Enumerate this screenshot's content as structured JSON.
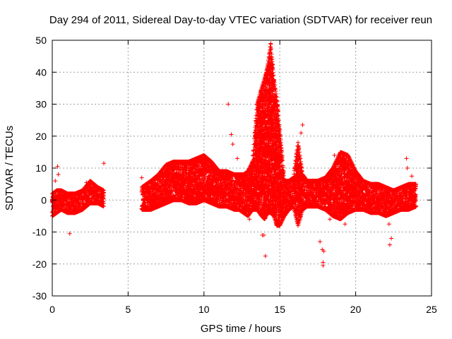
{
  "chart_data": {
    "type": "scatter",
    "title": "Day 294 of 2011, Sidereal Day-to-day VTEC variation (SDTVAR) for receiver reun",
    "xlabel": "GPS time / hours",
    "ylabel": "SDTVAR / TECUs",
    "xlim": [
      0,
      25
    ],
    "ylim": [
      -30,
      50
    ],
    "xticks": [
      0,
      5,
      10,
      15,
      20,
      25
    ],
    "yticks": [
      -30,
      -20,
      -10,
      0,
      10,
      20,
      30,
      40,
      50
    ],
    "grid": true,
    "marker": "+",
    "color": "#ff0000",
    "series": [
      {
        "name": "SDTVAR",
        "envelope_hours": [
          0.0,
          0.3,
          0.6,
          1.0,
          1.5,
          2.0,
          2.5,
          3.0,
          3.4,
          5.9,
          6.5,
          7.0,
          7.5,
          8.0,
          8.5,
          9.0,
          9.5,
          10.0,
          10.5,
          11.0,
          11.5,
          12.0,
          12.3,
          12.6,
          12.9,
          13.2,
          13.5,
          13.8,
          14.0,
          14.2,
          14.4,
          14.6,
          14.8,
          15.0,
          15.3,
          15.6,
          15.9,
          16.2,
          16.5,
          16.8,
          17.1,
          17.5,
          18.0,
          18.5,
          19.0,
          19.5,
          20.0,
          20.5,
          21.0,
          21.5,
          22.0,
          22.5,
          23.0,
          23.5,
          24.0
        ],
        "envelope_upper": [
          2,
          3,
          3,
          2,
          2,
          3,
          6,
          4,
          3,
          4,
          6,
          8,
          11,
          12,
          12,
          12,
          13,
          14,
          12,
          9,
          9,
          8,
          8,
          8,
          9,
          12,
          30,
          35,
          38,
          42,
          49,
          38,
          32,
          22,
          6,
          6,
          7,
          18,
          8,
          6,
          6,
          6,
          7,
          10,
          15,
          14,
          9,
          6,
          5,
          5,
          4,
          3,
          4,
          5,
          5
        ],
        "envelope_lower": [
          -5,
          -4,
          -3,
          -4,
          -4,
          -3,
          -1,
          -1,
          -2,
          -3,
          -3,
          -2,
          -1,
          0,
          0,
          -1,
          -1,
          0,
          -1,
          -2,
          -2,
          -3,
          -3,
          -4,
          -5,
          -3,
          -3,
          -5,
          -6,
          -4,
          -4,
          -5,
          -8,
          -8,
          -5,
          -3,
          -2,
          -8,
          -3,
          -2,
          -2,
          -2,
          -3,
          -5,
          -6,
          -4,
          -3,
          -3,
          -4,
          -4,
          -5,
          -4,
          -3,
          -3,
          -2
        ],
        "outliers": [
          {
            "x": 0.35,
            "y": 10.5
          },
          {
            "x": 0.4,
            "y": 8.0
          },
          {
            "x": 0.2,
            "y": 6.0
          },
          {
            "x": 1.15,
            "y": -10.5
          },
          {
            "x": 2.25,
            "y": 5.5
          },
          {
            "x": 3.4,
            "y": 11.5
          },
          {
            "x": 5.9,
            "y": 7.0
          },
          {
            "x": 11.6,
            "y": 30.0
          },
          {
            "x": 11.8,
            "y": 20.5
          },
          {
            "x": 11.9,
            "y": 17.5
          },
          {
            "x": 12.2,
            "y": 13.0
          },
          {
            "x": 13.0,
            "y": -6.0
          },
          {
            "x": 13.85,
            "y": -11.0
          },
          {
            "x": 13.95,
            "y": -11.0
          },
          {
            "x": 14.05,
            "y": -17.5
          },
          {
            "x": 16.5,
            "y": 23.5
          },
          {
            "x": 16.4,
            "y": 21.0
          },
          {
            "x": 17.65,
            "y": -13.0
          },
          {
            "x": 17.8,
            "y": -15.5
          },
          {
            "x": 17.9,
            "y": -16.0
          },
          {
            "x": 17.85,
            "y": -19.5
          },
          {
            "x": 17.85,
            "y": -20.5
          },
          {
            "x": 18.3,
            "y": -6.0
          },
          {
            "x": 19.3,
            "y": -7.5
          },
          {
            "x": 18.6,
            "y": 14.0
          },
          {
            "x": 22.25,
            "y": -14.0
          },
          {
            "x": 22.35,
            "y": -12.0
          },
          {
            "x": 22.2,
            "y": -7.5
          },
          {
            "x": 23.35,
            "y": 13.0
          },
          {
            "x": 23.4,
            "y": 10.0
          },
          {
            "x": 23.7,
            "y": 7.5
          }
        ]
      }
    ]
  }
}
